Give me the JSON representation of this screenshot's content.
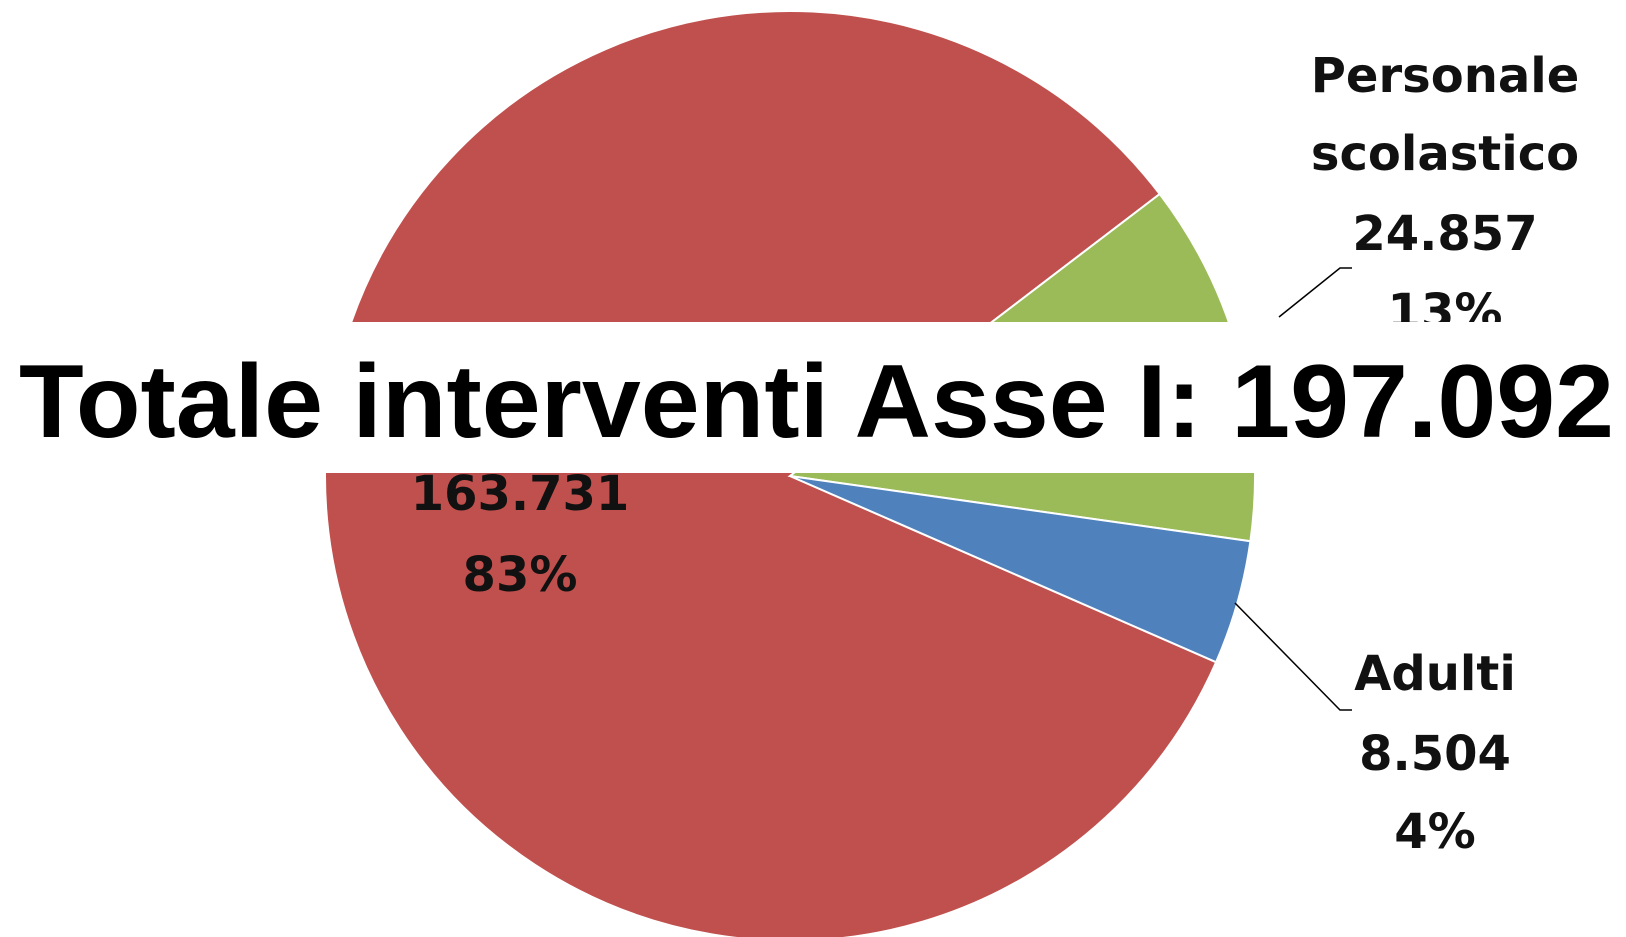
{
  "chart_data": {
    "type": "pie",
    "title": "Totale interventi Asse I: 197.092",
    "categories": [
      null,
      "Personale scolastico",
      "Adulti"
    ],
    "values": [
      163731,
      24857,
      8504
    ],
    "value_labels": [
      "163.731",
      "24.857",
      "8.504"
    ],
    "percent_labels": [
      "83%",
      "13%",
      "4%"
    ],
    "colors": [
      "#c0504d",
      "#9bbb59",
      "#4f81bd"
    ]
  }
}
